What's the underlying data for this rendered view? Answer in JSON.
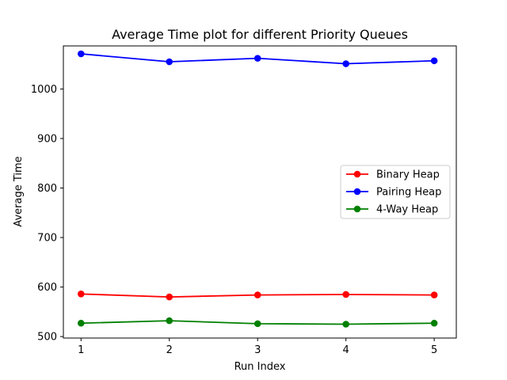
{
  "chart_data": {
    "type": "line",
    "title": "Average Time plot for different Priority Queues",
    "xlabel": "Run Index",
    "ylabel": "Average Time",
    "x": [
      1,
      2,
      3,
      4,
      5
    ],
    "xlim": [
      0.8,
      5.25
    ],
    "ylim": [
      497,
      1087
    ],
    "xticks": [
      1,
      2,
      3,
      4,
      5
    ],
    "yticks": [
      500,
      600,
      700,
      800,
      900,
      1000
    ],
    "grid": false,
    "legend_position": "center-right",
    "markers": "circle",
    "series": [
      {
        "name": "Binary Heap",
        "color": "#ff0000",
        "values": [
          586,
          580,
          584,
          585,
          584
        ]
      },
      {
        "name": "Pairing Heap",
        "color": "#0000ff",
        "values": [
          1071,
          1055,
          1062,
          1051,
          1057
        ]
      },
      {
        "name": "4-Way Heap",
        "color": "#008000",
        "values": [
          527,
          532,
          526,
          525,
          527
        ]
      }
    ]
  }
}
